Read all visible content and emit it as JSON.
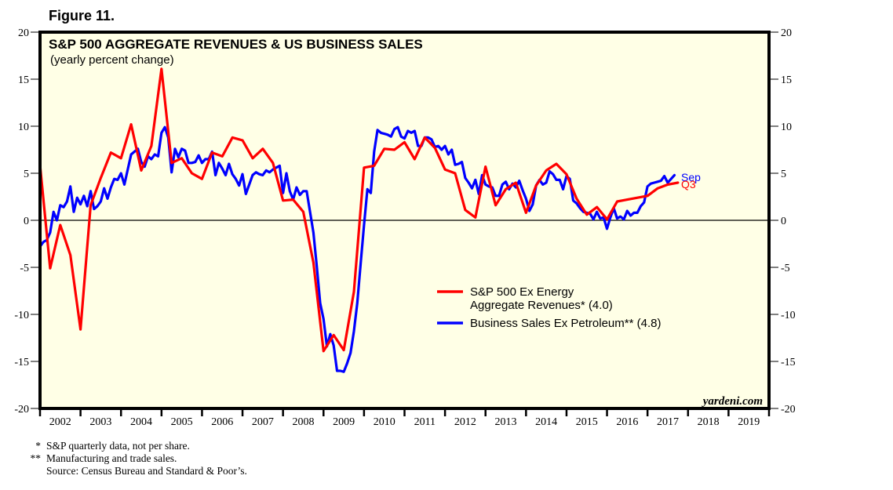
{
  "figure_label": "Figure 11.",
  "footnotes": [
    {
      "mark": "*",
      "text": "S&P quarterly data, not per share."
    },
    {
      "mark": "**",
      "text": "Manufacturing and trade sales."
    },
    {
      "mark": "",
      "text": "Source: Census Bureau and Standard & Poor’s."
    }
  ],
  "chart_data": {
    "type": "line",
    "title": "S&P 500 AGGREGATE REVENUES & US BUSINESS SALES",
    "subtitle": "(yearly percent change)",
    "xlabel": "",
    "ylabel": "",
    "ylim": [
      -20,
      20
    ],
    "xlim": [
      2002,
      2020
    ],
    "y_ticks": [
      20,
      15,
      10,
      5,
      0,
      -5,
      -10,
      -15,
      -20
    ],
    "y_axis_sides": [
      "left",
      "right"
    ],
    "x_tick_labels": [
      "2002",
      "2003",
      "2004",
      "2005",
      "2006",
      "2007",
      "2008",
      "2009",
      "2010",
      "2011",
      "2012",
      "2013",
      "2014",
      "2015",
      "2016",
      "2017",
      "2018",
      "2019"
    ],
    "zero_line": true,
    "grid": false,
    "background_color": "#ffffe6",
    "watermark": "yardeni.com",
    "legend": {
      "placement": "center-right",
      "entries": [
        {
          "series": "revenues",
          "lines": [
            "S&P 500 Ex Energy",
            "Aggregate Revenues* (4.0)"
          ]
        },
        {
          "series": "sales",
          "lines": [
            "Business Sales Ex Petroleum** (4.8)"
          ]
        }
      ]
    },
    "series": [
      {
        "id": "revenues",
        "name": "S&P 500 Ex Energy Aggregate Revenues*",
        "latest": 4.0,
        "color": "#ff0000",
        "frequency": "quarterly",
        "start": 2002.0,
        "step": 0.25,
        "end_label": "Q3",
        "values": [
          5.9,
          -5.1,
          -0.5,
          -3.7,
          -11.6,
          1.6,
          4.5,
          7.2,
          6.6,
          10.2,
          5.3,
          7.9,
          16.1,
          6.1,
          6.6,
          5.0,
          4.4,
          7.2,
          6.8,
          8.8,
          8.5,
          6.6,
          7.6,
          6.1,
          2.1,
          2.2,
          0.9,
          -4.5,
          -13.9,
          -12.2,
          -13.8,
          -7.6,
          5.6,
          5.8,
          7.6,
          7.5,
          8.3,
          6.5,
          8.8,
          7.7,
          5.4,
          5.0,
          1.1,
          0.3,
          5.7,
          1.6,
          3.3,
          4.0,
          0.8,
          3.7,
          5.3,
          6.0,
          4.9,
          2.3,
          0.6,
          1.4,
          0.1,
          2.0,
          2.2,
          2.4,
          2.6,
          3.4,
          3.8,
          4.0
        ]
      },
      {
        "id": "sales",
        "name": "Business Sales Ex Petroleum**",
        "latest": 4.8,
        "color": "#0000ff",
        "frequency": "monthly",
        "start": 2002.0,
        "step": 0.08333,
        "end_label": "Sep",
        "values": [
          -2.8,
          -2.3,
          -2.1,
          -1.3,
          0.9,
          0.0,
          1.6,
          1.4,
          2.0,
          3.6,
          0.9,
          2.4,
          1.7,
          2.6,
          1.5,
          3.1,
          1.2,
          1.5,
          2.0,
          3.4,
          2.3,
          3.5,
          4.4,
          4.3,
          5.0,
          3.8,
          5.4,
          7.0,
          7.3,
          7.6,
          6.2,
          5.7,
          6.8,
          6.5,
          7.0,
          6.8,
          9.3,
          9.9,
          8.8,
          5.1,
          7.6,
          6.7,
          7.6,
          7.4,
          6.1,
          6.1,
          6.2,
          6.9,
          6.1,
          6.5,
          6.5,
          7.3,
          4.8,
          6.1,
          5.5,
          4.8,
          6.0,
          4.9,
          4.4,
          3.7,
          4.9,
          2.8,
          3.8,
          4.8,
          5.1,
          4.9,
          4.8,
          5.3,
          5.1,
          5.4,
          5.6,
          5.8,
          2.9,
          5.0,
          3.1,
          2.2,
          3.5,
          2.7,
          3.1,
          3.1,
          0.9,
          -1.3,
          -4.9,
          -8.8,
          -10.5,
          -13.4,
          -12.1,
          -13.3,
          -16.0,
          -16.0,
          -16.1,
          -15.2,
          -14.1,
          -11.8,
          -8.8,
          -4.6,
          -0.5,
          3.3,
          2.9,
          7.3,
          9.6,
          9.3,
          9.2,
          9.1,
          8.9,
          9.7,
          9.9,
          8.9,
          8.7,
          9.5,
          9.3,
          9.5,
          7.9,
          7.9,
          8.8,
          8.8,
          8.6,
          7.8,
          7.9,
          7.5,
          7.9,
          7.0,
          7.5,
          5.9,
          6.0,
          6.2,
          4.5,
          4.0,
          3.4,
          4.3,
          2.8,
          4.8,
          3.8,
          3.6,
          3.5,
          2.6,
          2.6,
          3.8,
          4.1,
          3.3,
          3.9,
          3.5,
          4.2,
          3.2,
          2.3,
          1.0,
          1.7,
          3.7,
          4.3,
          3.8,
          4.0,
          5.2,
          4.9,
          4.3,
          4.3,
          3.3,
          4.7,
          4.4,
          2.1,
          1.8,
          1.3,
          0.9,
          0.8,
          0.7,
          0.1,
          0.9,
          0.2,
          0.3,
          -0.9,
          0.3,
          1.3,
          0.2,
          0.4,
          0.1,
          1.0,
          0.5,
          0.8,
          0.8,
          1.5,
          1.9,
          3.6,
          3.9,
          4.0,
          4.1,
          4.2,
          4.7,
          4.0,
          4.4,
          4.8
        ]
      }
    ]
  }
}
